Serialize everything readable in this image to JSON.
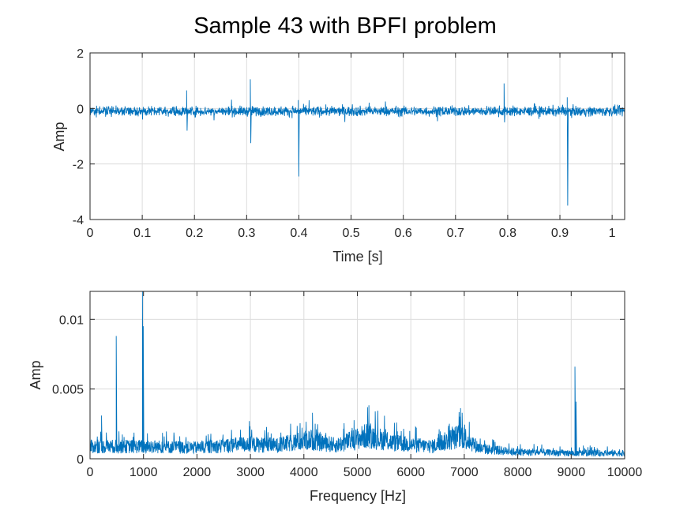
{
  "figure": {
    "title": "Sample 43 with BPFI problem"
  },
  "chart_data": [
    {
      "type": "line",
      "xlabel": "Time [s]",
      "ylabel": "Amp",
      "xlim": [
        0,
        1.024
      ],
      "ylim": [
        -4,
        2
      ],
      "xticks": [
        0,
        0.1,
        0.2,
        0.3,
        0.4,
        0.5,
        0.6,
        0.7,
        0.8,
        0.9,
        1
      ],
      "xtick_labels": [
        "0",
        "0.1",
        "0.2",
        "0.3",
        "0.4",
        "0.5",
        "0.6",
        "0.7",
        "0.8",
        "0.9",
        "1"
      ],
      "yticks": [
        -4,
        -2,
        0,
        2
      ],
      "ytick_labels": [
        "-4",
        "-2",
        "0",
        "2"
      ],
      "grid": true,
      "color": "#0072BD",
      "signal": {
        "baseline": -0.1,
        "noise_amplitude": 0.3,
        "duration": 1.024,
        "impulses": [
          {
            "t": 0.185,
            "peak": 0.65,
            "trough": -0.8
          },
          {
            "t": 0.307,
            "peak": 1.05,
            "trough": -1.25
          },
          {
            "t": 0.399,
            "peak": 0.3,
            "trough": -2.45
          },
          {
            "t": 0.793,
            "peak": 0.9,
            "trough": -0.5
          },
          {
            "t": 0.914,
            "peak": 0.4,
            "trough": -3.5
          }
        ]
      }
    },
    {
      "type": "line",
      "xlabel": "Frequency [Hz]",
      "ylabel": "Amp",
      "xlim": [
        0,
        10000
      ],
      "ylim": [
        0,
        0.012
      ],
      "xticks": [
        0,
        1000,
        2000,
        3000,
        4000,
        5000,
        6000,
        7000,
        8000,
        9000,
        10000
      ],
      "xtick_labels": [
        "0",
        "1000",
        "2000",
        "3000",
        "4000",
        "5000",
        "6000",
        "7000",
        "8000",
        "9000",
        "10000"
      ],
      "yticks": [
        0,
        0.005,
        0.01
      ],
      "ytick_labels": [
        "0",
        "0.005",
        "0.01"
      ],
      "grid": true,
      "color": "#0072BD",
      "spectrum": {
        "envelope": [
          [
            0,
            0.0011
          ],
          [
            1000,
            0.0011
          ],
          [
            2000,
            0.001
          ],
          [
            2900,
            0.0013
          ],
          [
            3500,
            0.0012
          ],
          [
            4100,
            0.0017
          ],
          [
            4600,
            0.0012
          ],
          [
            5200,
            0.0021
          ],
          [
            5700,
            0.0014
          ],
          [
            6400,
            0.0011
          ],
          [
            6950,
            0.0021
          ],
          [
            7300,
            0.0009
          ],
          [
            8000,
            0.0006
          ],
          [
            9000,
            0.0005
          ],
          [
            10000,
            0.0005
          ]
        ],
        "peaks": [
          {
            "f": 490,
            "amp": 0.0088
          },
          {
            "f": 980,
            "amp": 0.012
          },
          {
            "f": 995,
            "amp": 0.0095
          },
          {
            "f": 215,
            "amp": 0.0031
          },
          {
            "f": 9070,
            "amp": 0.0066
          },
          {
            "f": 9090,
            "amp": 0.0041
          },
          {
            "f": 5190,
            "amp": 0.0037
          },
          {
            "f": 4160,
            "amp": 0.0033
          },
          {
            "f": 6960,
            "amp": 0.0033
          },
          {
            "f": 2980,
            "amp": 0.0027
          }
        ]
      }
    }
  ]
}
